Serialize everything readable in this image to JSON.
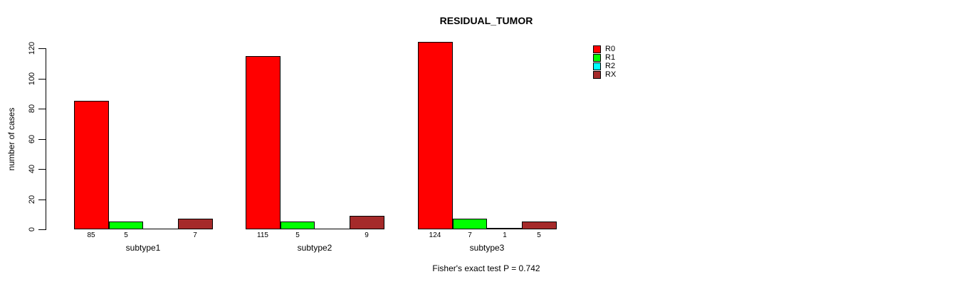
{
  "chart_data": {
    "type": "bar",
    "title": "RESIDUAL_TUMOR",
    "xlabel": "",
    "ylabel": "number of cases",
    "ylim": [
      0,
      120
    ],
    "y_ticks": [
      0,
      20,
      40,
      60,
      80,
      100,
      120
    ],
    "grid": false,
    "legend_position": "right",
    "categories": [
      "subtype1",
      "subtype2",
      "subtype3"
    ],
    "series": [
      {
        "name": "R0",
        "color": "#FF0000",
        "values": [
          85,
          115,
          124
        ]
      },
      {
        "name": "R1",
        "color": "#00FF00",
        "values": [
          5,
          5,
          7
        ]
      },
      {
        "name": "R2",
        "color": "#00FFFF",
        "values": [
          0,
          0,
          1
        ]
      },
      {
        "name": "RX",
        "color": "#A52A2A",
        "values": [
          7,
          9,
          5
        ]
      }
    ],
    "bar_labels": [
      [
        "85",
        "5",
        "",
        "7"
      ],
      [
        "115",
        "5",
        "",
        "9"
      ],
      [
        "124",
        "7",
        "1",
        "5"
      ]
    ],
    "annotation": "Fisher's exact test P = 0.742"
  }
}
